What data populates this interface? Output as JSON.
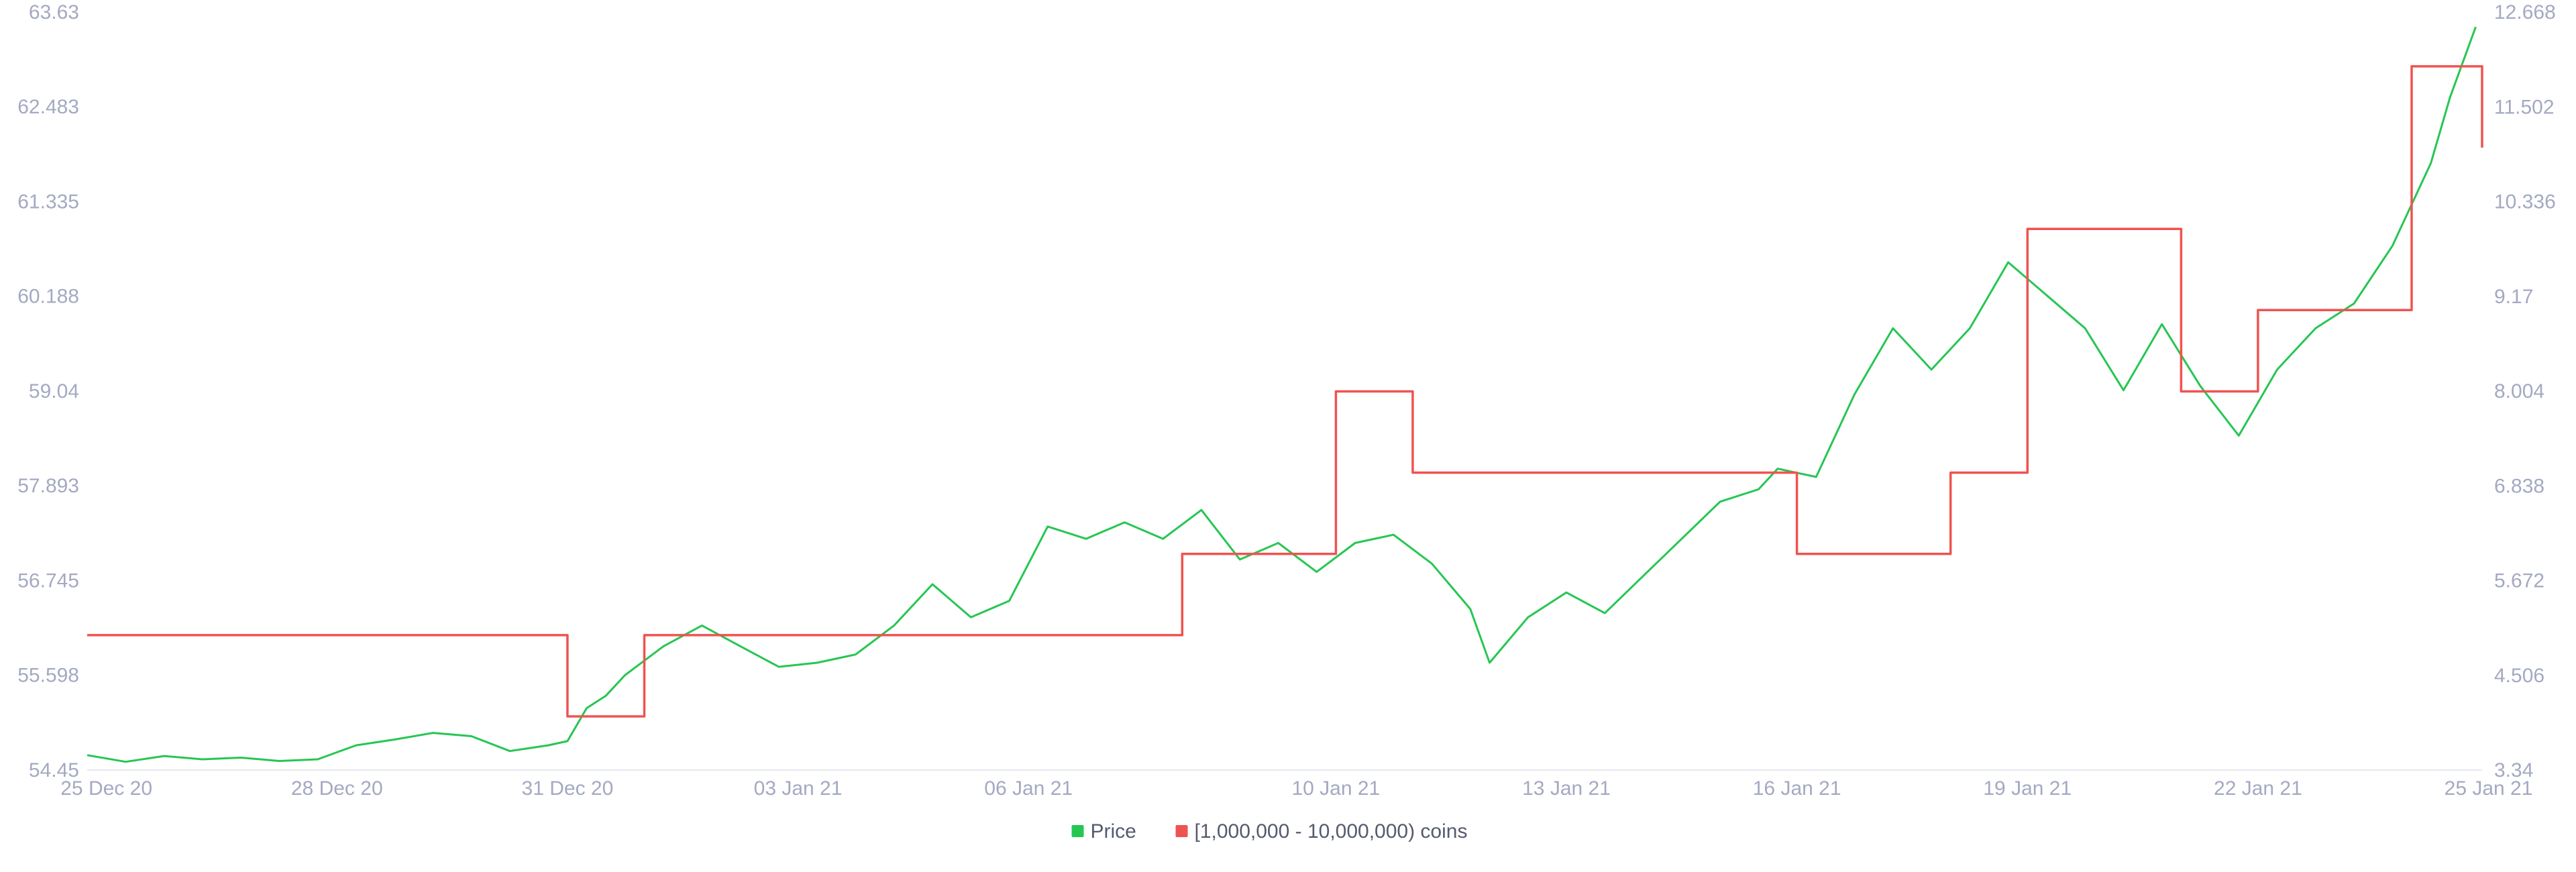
{
  "chart_data": {
    "type": "line",
    "title": "",
    "xlabel": "",
    "ylabel_left": "",
    "ylabel_right": "",
    "x_range": [
      "2020-12-24T18:00",
      "2021-01-24T22:00"
    ],
    "x_ticks": [
      {
        "date": "2020-12-25",
        "label": "25 Dec 20"
      },
      {
        "date": "2020-12-28",
        "label": "28 Dec 20"
      },
      {
        "date": "2020-12-31",
        "label": "31 Dec 20"
      },
      {
        "date": "2021-01-03",
        "label": "03 Jan 21"
      },
      {
        "date": "2021-01-06",
        "label": "06 Jan 21"
      },
      {
        "date": "2021-01-10",
        "label": "10 Jan 21"
      },
      {
        "date": "2021-01-13",
        "label": "13 Jan 21"
      },
      {
        "date": "2021-01-16",
        "label": "16 Jan 21"
      },
      {
        "date": "2021-01-19",
        "label": "19 Jan 21"
      },
      {
        "date": "2021-01-22",
        "label": "22 Jan 21"
      },
      {
        "date": "2021-01-25",
        "label": "25 Jan 21"
      }
    ],
    "y_left": {
      "range": [
        54.45,
        63.63
      ],
      "ticks": [
        "54.45",
        "55.598",
        "56.745",
        "57.893",
        "59.04",
        "60.188",
        "61.335",
        "62.483",
        "63.63"
      ]
    },
    "y_right": {
      "range": [
        3.34,
        12.668
      ],
      "ticks": [
        "3.34",
        "4.506",
        "5.672",
        "6.838",
        "8.004",
        "9.17",
        "10.336",
        "11.502",
        "12.668"
      ]
    },
    "grid": false,
    "legend_position": "bottom-center",
    "series": [
      {
        "name": "Price",
        "color": "#26c653",
        "axis": "left",
        "points": [
          [
            "2020-12-24T18:00",
            54.63
          ],
          [
            "2020-12-25T06:00",
            54.55
          ],
          [
            "2020-12-25T18:00",
            54.62
          ],
          [
            "2020-12-26T06:00",
            54.58
          ],
          [
            "2020-12-26T18:00",
            54.6
          ],
          [
            "2020-12-27T06:00",
            54.56
          ],
          [
            "2020-12-27T18:00",
            54.58
          ],
          [
            "2020-12-28T06:00",
            54.75
          ],
          [
            "2020-12-28T18:00",
            54.82
          ],
          [
            "2020-12-29T06:00",
            54.9
          ],
          [
            "2020-12-29T18:00",
            54.86
          ],
          [
            "2020-12-30T06:00",
            54.68
          ],
          [
            "2020-12-30T18:00",
            54.75
          ],
          [
            "2020-12-31T00:00",
            54.8
          ],
          [
            "2020-12-31T06:00",
            55.2
          ],
          [
            "2020-12-31T12:00",
            55.35
          ],
          [
            "2020-12-31T18:00",
            55.6
          ],
          [
            "2021-01-01T06:00",
            55.95
          ],
          [
            "2021-01-01T18:00",
            56.2
          ],
          [
            "2021-01-02T06:00",
            55.95
          ],
          [
            "2021-01-02T18:00",
            55.7
          ],
          [
            "2021-01-03T06:00",
            55.75
          ],
          [
            "2021-01-03T18:00",
            55.85
          ],
          [
            "2021-01-04T06:00",
            56.2
          ],
          [
            "2021-01-04T18:00",
            56.7
          ],
          [
            "2021-01-05T06:00",
            56.3
          ],
          [
            "2021-01-05T18:00",
            56.5
          ],
          [
            "2021-01-06T06:00",
            57.4
          ],
          [
            "2021-01-06T18:00",
            57.25
          ],
          [
            "2021-01-07T06:00",
            57.45
          ],
          [
            "2021-01-07T18:00",
            57.25
          ],
          [
            "2021-01-08T06:00",
            57.6
          ],
          [
            "2021-01-08T18:00",
            57.0
          ],
          [
            "2021-01-09T06:00",
            57.2
          ],
          [
            "2021-01-09T18:00",
            56.85
          ],
          [
            "2021-01-10T06:00",
            57.2
          ],
          [
            "2021-01-10T18:00",
            57.3
          ],
          [
            "2021-01-11T06:00",
            56.95
          ],
          [
            "2021-01-11T18:00",
            56.4
          ],
          [
            "2021-01-12T00:00",
            55.75
          ],
          [
            "2021-01-12T12:00",
            56.3
          ],
          [
            "2021-01-13T00:00",
            56.6
          ],
          [
            "2021-01-13T12:00",
            56.35
          ],
          [
            "2021-01-14T00:00",
            56.8
          ],
          [
            "2021-01-14T12:00",
            57.25
          ],
          [
            "2021-01-15T00:00",
            57.7
          ],
          [
            "2021-01-15T12:00",
            57.85
          ],
          [
            "2021-01-15T18:00",
            58.1
          ],
          [
            "2021-01-16T06:00",
            58.0
          ],
          [
            "2021-01-16T18:00",
            59.0
          ],
          [
            "2021-01-17T06:00",
            59.8
          ],
          [
            "2021-01-17T18:00",
            59.3
          ],
          [
            "2021-01-18T06:00",
            59.8
          ],
          [
            "2021-01-18T18:00",
            60.6
          ],
          [
            "2021-01-19T06:00",
            60.2
          ],
          [
            "2021-01-19T18:00",
            59.8
          ],
          [
            "2021-01-20T06:00",
            59.05
          ],
          [
            "2021-01-20T18:00",
            59.85
          ],
          [
            "2021-01-21T06:00",
            59.1
          ],
          [
            "2021-01-21T18:00",
            58.5
          ],
          [
            "2021-01-22T06:00",
            59.3
          ],
          [
            "2021-01-22T18:00",
            59.8
          ],
          [
            "2021-01-23T06:00",
            60.1
          ],
          [
            "2021-01-23T18:00",
            60.8
          ],
          [
            "2021-01-24T06:00",
            61.8
          ],
          [
            "2021-01-24T12:00",
            62.6
          ],
          [
            "2021-01-24T20:00",
            63.45
          ]
        ]
      },
      {
        "name": "[1,000,000 - 10,000,000) coins",
        "color": "#ef5350",
        "axis": "right",
        "step": true,
        "points": [
          [
            "2020-12-24T18:00",
            5.0
          ],
          [
            "2020-12-31T00:00",
            4.0
          ],
          [
            "2021-01-01T00:00",
            5.0
          ],
          [
            "2021-01-08T00:00",
            6.0
          ],
          [
            "2021-01-10T00:00",
            8.0
          ],
          [
            "2021-01-11T00:00",
            7.0
          ],
          [
            "2021-01-16T00:00",
            6.0
          ],
          [
            "2021-01-18T00:00",
            7.0
          ],
          [
            "2021-01-19T00:00",
            10.0
          ],
          [
            "2021-01-21T00:00",
            8.0
          ],
          [
            "2021-01-22T00:00",
            9.0
          ],
          [
            "2021-01-24T00:00",
            12.0
          ],
          [
            "2021-01-24T22:00",
            11.0
          ]
        ]
      }
    ]
  }
}
